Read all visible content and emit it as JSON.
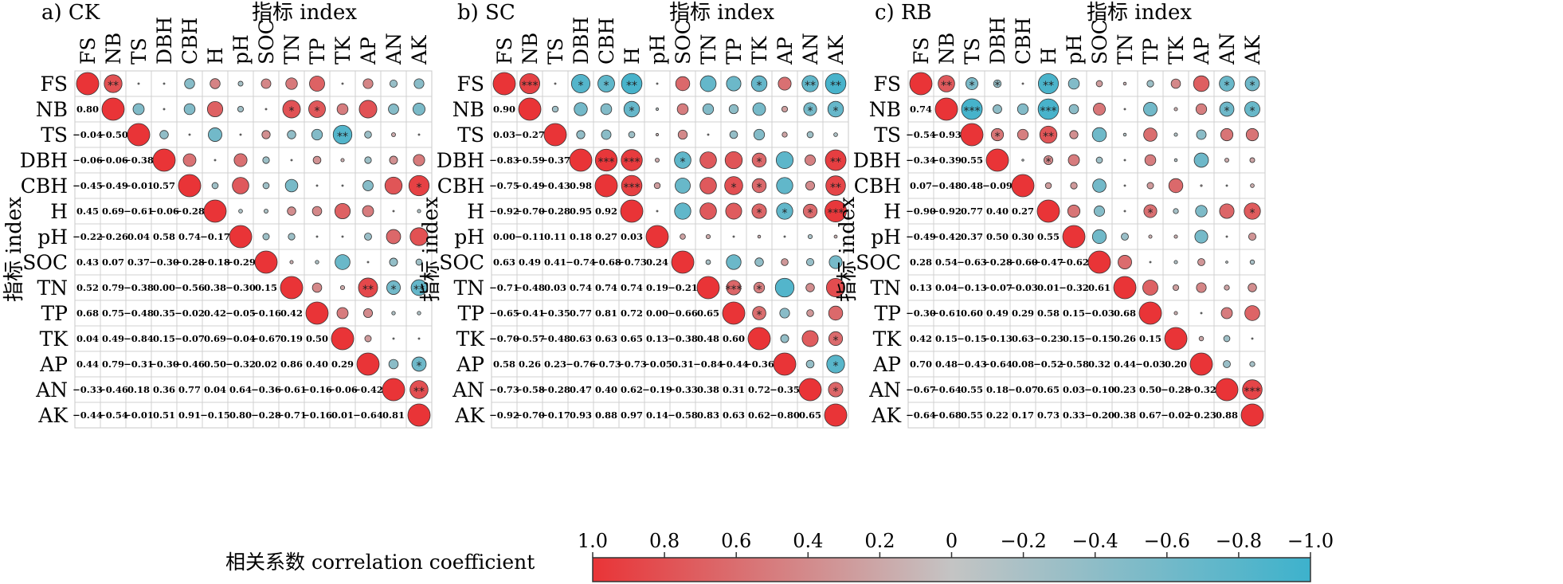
{
  "chart_data": [
    {
      "type": "heatmap",
      "title": "a) CK",
      "xlabel": "指标 index",
      "ylabel": "指标 index",
      "labels": [
        "FS",
        "NB",
        "TS",
        "DBH",
        "CBH",
        "H",
        "pH",
        "SOC",
        "TN",
        "TP",
        "TK",
        "AP",
        "AN",
        "AK"
      ],
      "lower_values": [
        [],
        [
          0.8
        ],
        [
          -0.04,
          -0.5
        ],
        [
          -0.06,
          -0.06,
          -0.38
        ],
        [
          -0.45,
          -0.49,
          -0.01,
          0.57
        ],
        [
          0.45,
          0.69,
          -0.61,
          -0.06,
          -0.28
        ],
        [
          -0.22,
          -0.26,
          0.04,
          0.58,
          0.74,
          -0.17
        ],
        [
          0.43,
          0.07,
          0.37,
          -0.3,
          -0.28,
          -0.18,
          -0.29
        ],
        [
          0.52,
          0.79,
          -0.38,
          0.0,
          -0.56,
          0.38,
          -0.3,
          0.15
        ],
        [
          0.68,
          0.75,
          -0.48,
          0.35,
          -0.02,
          0.42,
          -0.05,
          -0.16,
          0.42
        ],
        [
          0.04,
          0.49,
          -0.84,
          0.15,
          -0.07,
          0.69,
          -0.04,
          -0.67,
          0.19,
          0.5
        ],
        [
          0.44,
          0.79,
          -0.31,
          -0.3,
          -0.46,
          0.5,
          -0.32,
          0.02,
          0.86,
          0.4,
          0.29
        ],
        [
          -0.33,
          -0.46,
          0.18,
          0.36,
          0.77,
          0.04,
          0.64,
          -0.36,
          -0.61,
          -0.16,
          -0.06,
          -0.42
        ],
        [
          -0.44,
          -0.54,
          -0.01,
          0.51,
          0.91,
          -0.15,
          0.8,
          -0.28,
          -0.71,
          -0.16,
          0.01,
          -0.64,
          0.81
        ]
      ],
      "significance": [
        {
          "row": 0,
          "col": 1,
          "stars": "**"
        },
        {
          "row": 1,
          "col": 8,
          "stars": "*"
        },
        {
          "row": 1,
          "col": 9,
          "stars": "*"
        },
        {
          "row": 2,
          "col": 10,
          "stars": "**"
        },
        {
          "row": 4,
          "col": 13,
          "stars": "*"
        },
        {
          "row": 8,
          "col": 11,
          "stars": "**"
        },
        {
          "row": 8,
          "col": 12,
          "stars": "*"
        },
        {
          "row": 8,
          "col": 13,
          "stars": "**"
        },
        {
          "row": 11,
          "col": 13,
          "stars": "*"
        },
        {
          "row": 12,
          "col": 13,
          "stars": "**"
        }
      ]
    },
    {
      "type": "heatmap",
      "title": "b) SC",
      "xlabel": "指标 index",
      "ylabel": "指标 index",
      "labels": [
        "FS",
        "NB",
        "TS",
        "DBH",
        "CBH",
        "H",
        "pH",
        "SOC",
        "TN",
        "TP",
        "TK",
        "AP",
        "AN",
        "AK"
      ],
      "lower_values": [
        [],
        [
          0.9
        ],
        [
          0.03,
          -0.27
        ],
        [
          -0.83,
          -0.59,
          -0.37
        ],
        [
          -0.75,
          -0.49,
          -0.43,
          0.98
        ],
        [
          -0.92,
          -0.7,
          -0.28,
          0.95,
          0.92
        ],
        [
          0.0,
          -0.11,
          0.11,
          0.18,
          0.27,
          0.03
        ],
        [
          0.63,
          0.49,
          0.41,
          -0.74,
          -0.68,
          -0.73,
          0.24
        ],
        [
          -0.71,
          -0.48,
          0.03,
          0.74,
          0.74,
          0.74,
          0.19,
          -0.21
        ],
        [
          -0.65,
          -0.41,
          -0.35,
          0.77,
          0.81,
          0.72,
          0.0,
          -0.66,
          0.65
        ],
        [
          -0.7,
          -0.57,
          -0.48,
          0.63,
          0.63,
          0.65,
          0.13,
          -0.38,
          0.48,
          0.6
        ],
        [
          0.58,
          0.26,
          0.23,
          -0.76,
          -0.73,
          -0.73,
          -0.05,
          0.31,
          -0.84,
          -0.44,
          -0.36
        ],
        [
          -0.73,
          -0.58,
          -0.28,
          0.47,
          0.4,
          0.62,
          -0.19,
          -0.33,
          0.38,
          0.31,
          0.72,
          -0.35
        ],
        [
          -0.92,
          -0.7,
          -0.17,
          0.93,
          0.88,
          0.97,
          0.14,
          -0.58,
          0.83,
          0.63,
          0.62,
          -0.8,
          0.65
        ]
      ],
      "significance": [
        {
          "row": 0,
          "col": 1,
          "stars": "***"
        },
        {
          "row": 0,
          "col": 3,
          "stars": "*"
        },
        {
          "row": 0,
          "col": 4,
          "stars": "*"
        },
        {
          "row": 0,
          "col": 5,
          "stars": "**"
        },
        {
          "row": 0,
          "col": 10,
          "stars": "*"
        },
        {
          "row": 0,
          "col": 12,
          "stars": "**"
        },
        {
          "row": 0,
          "col": 13,
          "stars": "**"
        },
        {
          "row": 1,
          "col": 5,
          "stars": "*"
        },
        {
          "row": 1,
          "col": 12,
          "stars": "*"
        },
        {
          "row": 1,
          "col": 13,
          "stars": "*"
        },
        {
          "row": 3,
          "col": 4,
          "stars": "***"
        },
        {
          "row": 3,
          "col": 5,
          "stars": "***"
        },
        {
          "row": 3,
          "col": 7,
          "stars": "*"
        },
        {
          "row": 3,
          "col": 10,
          "stars": "*"
        },
        {
          "row": 3,
          "col": 13,
          "stars": "**"
        },
        {
          "row": 4,
          "col": 5,
          "stars": "***"
        },
        {
          "row": 4,
          "col": 9,
          "stars": "*"
        },
        {
          "row": 4,
          "col": 10,
          "stars": "*"
        },
        {
          "row": 4,
          "col": 13,
          "stars": "**"
        },
        {
          "row": 5,
          "col": 10,
          "stars": "*"
        },
        {
          "row": 5,
          "col": 11,
          "stars": "*"
        },
        {
          "row": 5,
          "col": 12,
          "stars": "*"
        },
        {
          "row": 5,
          "col": 13,
          "stars": "***"
        },
        {
          "row": 8,
          "col": 9,
          "stars": "***"
        },
        {
          "row": 8,
          "col": 10,
          "stars": "*"
        },
        {
          "row": 9,
          "col": 10,
          "stars": "*"
        },
        {
          "row": 10,
          "col": 13,
          "stars": "*"
        },
        {
          "row": 11,
          "col": 13,
          "stars": "*"
        },
        {
          "row": 12,
          "col": 13,
          "stars": "*"
        }
      ]
    },
    {
      "type": "heatmap",
      "title": "c) RB",
      "xlabel": "指标 index",
      "ylabel": "指标 index",
      "labels": [
        "FS",
        "NB",
        "TS",
        "DBH",
        "CBH",
        "H",
        "pH",
        "SOC",
        "TN",
        "TP",
        "TK",
        "AP",
        "AN",
        "AK"
      ],
      "lower_values": [
        [],
        [
          0.74
        ],
        [
          -0.54,
          -0.93
        ],
        [
          -0.34,
          -0.39,
          0.55
        ],
        [
          0.07,
          -0.48,
          0.48,
          -0.09
        ],
        [
          -0.9,
          -0.92,
          0.77,
          0.4,
          0.27
        ],
        [
          -0.49,
          -0.42,
          0.37,
          0.5,
          0.3,
          0.55
        ],
        [
          0.28,
          0.54,
          -0.63,
          -0.28,
          -0.6,
          -0.47,
          -0.62
        ],
        [
          0.13,
          0.04,
          -0.13,
          -0.07,
          -0.03,
          0.01,
          -0.32,
          0.61
        ],
        [
          -0.3,
          -0.61,
          0.6,
          0.49,
          0.29,
          0.58,
          0.15,
          -0.03,
          0.68
        ],
        [
          0.42,
          0.15,
          -0.15,
          -0.13,
          0.63,
          -0.23,
          0.15,
          -0.15,
          0.26,
          0.15
        ],
        [
          0.7,
          0.48,
          -0.43,
          -0.64,
          0.08,
          -0.52,
          -0.58,
          0.32,
          0.44,
          -0.03,
          0.2
        ],
        [
          -0.67,
          -0.64,
          0.55,
          0.18,
          -0.07,
          0.65,
          0.03,
          -0.1,
          0.23,
          0.5,
          -0.28,
          -0.32
        ],
        [
          -0.64,
          -0.68,
          0.55,
          0.22,
          0.17,
          0.73,
          0.33,
          -0.2,
          0.38,
          0.67,
          -0.02,
          -0.23,
          0.88
        ]
      ],
      "significance": [
        {
          "row": 0,
          "col": 1,
          "stars": "**"
        },
        {
          "row": 0,
          "col": 2,
          "stars": "*"
        },
        {
          "row": 0,
          "col": 3,
          "stars": "*"
        },
        {
          "row": 0,
          "col": 5,
          "stars": "**"
        },
        {
          "row": 0,
          "col": 12,
          "stars": "*"
        },
        {
          "row": 0,
          "col": 13,
          "stars": "*"
        },
        {
          "row": 1,
          "col": 2,
          "stars": "***"
        },
        {
          "row": 1,
          "col": 5,
          "stars": "***"
        },
        {
          "row": 1,
          "col": 12,
          "stars": "*"
        },
        {
          "row": 1,
          "col": 13,
          "stars": "*"
        },
        {
          "row": 2,
          "col": 3,
          "stars": "*"
        },
        {
          "row": 2,
          "col": 5,
          "stars": "**"
        },
        {
          "row": 3,
          "col": 5,
          "stars": "*"
        },
        {
          "row": 5,
          "col": 9,
          "stars": "*"
        },
        {
          "row": 5,
          "col": 13,
          "stars": "*"
        },
        {
          "row": 12,
          "col": 13,
          "stars": "***"
        }
      ]
    }
  ],
  "colorbar": {
    "title": "相关系数 correlation coefficient",
    "ticks": [
      "1.0",
      "0.8",
      "0.6",
      "0.4",
      "0.2",
      "0",
      "−0.2",
      "−0.4",
      "−0.6",
      "−0.8",
      "−1.0"
    ],
    "range": [
      1.0,
      -1.0
    ],
    "colors": {
      "positive": "#e93437",
      "neutral": "#c4c4c4",
      "negative": "#3db2cc"
    }
  }
}
